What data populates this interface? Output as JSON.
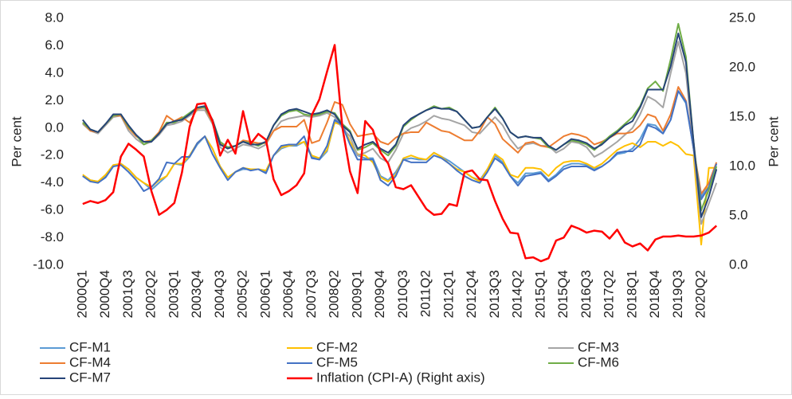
{
  "chart_data": {
    "type": "line",
    "y_label": "Per cent",
    "y2_label": "Per cent",
    "categories": [
      "2000Q1",
      null,
      null,
      "2000Q4",
      null,
      null,
      "2001Q3",
      null,
      null,
      "2002Q2",
      null,
      null,
      "2003Q1",
      null,
      null,
      "2003Q4",
      null,
      null,
      "2004Q3",
      null,
      null,
      "2005Q2",
      null,
      null,
      "2006Q1",
      null,
      null,
      "2006Q4",
      null,
      null,
      "2007Q3",
      null,
      null,
      "2008Q2",
      null,
      null,
      "2009Q1",
      null,
      null,
      "2009Q4",
      null,
      null,
      "2010Q3",
      null,
      null,
      "2011Q2",
      null,
      null,
      "2012Q1",
      null,
      null,
      "2012Q4",
      null,
      null,
      "2013Q3",
      null,
      null,
      "2014Q2",
      null,
      null,
      "2015Q1",
      null,
      null,
      "2015Q4",
      null,
      null,
      "2016Q3",
      null,
      null,
      "2017Q2",
      null,
      null,
      "2018Q1",
      null,
      null,
      "2018Q4",
      null,
      null,
      "2019Q3",
      null,
      null,
      "2020Q2",
      null,
      null
    ],
    "ylim": [
      -10,
      8
    ],
    "yticks": [
      {
        "value": -10,
        "label": "-10.0"
      },
      {
        "value": -8,
        "label": "-8.0"
      },
      {
        "value": -6,
        "label": "-6.0"
      },
      {
        "value": -4,
        "label": "-4.0"
      },
      {
        "value": -2,
        "label": "-2.0"
      },
      {
        "value": 0,
        "label": "0.0"
      },
      {
        "value": 2,
        "label": "2.0"
      },
      {
        "value": 4,
        "label": "4.0"
      },
      {
        "value": 6,
        "label": "6.0"
      },
      {
        "value": 8,
        "label": "8.0"
      }
    ],
    "y2lim": [
      0,
      25
    ],
    "y2ticks": [
      {
        "value": 0,
        "label": "0.0"
      },
      {
        "value": 5,
        "label": "5.0"
      },
      {
        "value": 10,
        "label": "10.0"
      },
      {
        "value": 15,
        "label": "15.0"
      },
      {
        "value": 20,
        "label": "20.0"
      },
      {
        "value": 25,
        "label": "25.0"
      }
    ],
    "grid": false,
    "series": [
      {
        "name": "CF-M1",
        "color": "#5b9bd5",
        "values": [
          -3.5,
          -3.8,
          -3.9,
          -3.5,
          -2.8,
          -2.6,
          -3.0,
          -3.6,
          -4.0,
          -4.5,
          -4.0,
          -3.5,
          -2.6,
          -2.7,
          -2.1,
          -1.2,
          -0.6,
          -1.5,
          -2.8,
          -3.6,
          -3.2,
          -3.0,
          -3.0,
          -3.0,
          -3.2,
          -2.0,
          -1.5,
          -1.3,
          -1.3,
          -1.0,
          -2.1,
          -2.3,
          -1.7,
          0.5,
          0.3,
          -1.0,
          -2.0,
          -2.2,
          -2.2,
          -3.5,
          -3.8,
          -3.2,
          -2.3,
          -2.2,
          -2.3,
          -2.3,
          -1.8,
          -2.1,
          -2.4,
          -2.8,
          -3.2,
          -3.6,
          -3.8,
          -3.0,
          -2.0,
          -2.5,
          -3.5,
          -4.0,
          -3.3,
          -3.3,
          -3.2,
          -3.8,
          -3.4,
          -2.8,
          -2.6,
          -2.6,
          -2.7,
          -3.0,
          -2.8,
          -2.4,
          -1.9,
          -1.8,
          -1.5,
          -0.8,
          0.3,
          0.2,
          -0.4,
          0.6,
          2.7,
          1.8,
          -1.5,
          -5.0,
          -4.0,
          -3.0
        ]
      },
      {
        "name": "CF-M2",
        "color": "#ffc000",
        "values": [
          -3.4,
          -3.8,
          -3.9,
          -3.4,
          -2.7,
          -2.6,
          -3.0,
          -3.6,
          -4.0,
          -4.3,
          -3.8,
          -3.5,
          -2.6,
          -2.6,
          -2.0,
          -1.1,
          -0.6,
          -1.5,
          -2.8,
          -3.6,
          -3.2,
          -2.9,
          -3.0,
          -3.0,
          -3.1,
          -2.0,
          -1.4,
          -1.3,
          -1.2,
          -1.0,
          -2.0,
          -2.2,
          -1.6,
          0.4,
          0.2,
          -1.0,
          -1.9,
          -2.0,
          -2.5,
          -3.6,
          -3.9,
          -3.4,
          -2.2,
          -2.0,
          -2.2,
          -2.3,
          -1.8,
          -2.1,
          -2.6,
          -3.0,
          -3.2,
          -3.6,
          -3.9,
          -3.0,
          -1.9,
          -2.3,
          -3.4,
          -3.6,
          -2.9,
          -2.9,
          -3.0,
          -3.5,
          -2.9,
          -2.5,
          -2.4,
          -2.4,
          -2.6,
          -2.9,
          -2.6,
          -2.1,
          -1.6,
          -1.3,
          -1.1,
          -1.4,
          -1.0,
          -1.0,
          -1.3,
          -1.0,
          -1.3,
          -1.9,
          -2.0,
          -8.5,
          -2.9,
          -2.9
        ]
      },
      {
        "name": "CF-M3",
        "color": "#a5a5a5",
        "values": [
          0.3,
          -0.2,
          -0.4,
          0.2,
          0.8,
          0.9,
          -0.2,
          -0.8,
          -1.2,
          -1.0,
          -0.5,
          0.2,
          0.3,
          0.5,
          0.9,
          1.3,
          1.3,
          0.3,
          -1.4,
          -1.8,
          -1.5,
          -1.2,
          -1.3,
          -1.5,
          -1.2,
          -0.2,
          0.5,
          0.7,
          0.8,
          0.9,
          0.8,
          0.9,
          1.1,
          0.8,
          0.0,
          -0.6,
          -2.0,
          -1.8,
          -1.5,
          -2.2,
          -2.5,
          -1.6,
          -0.4,
          0.0,
          0.2,
          0.5,
          0.9,
          0.7,
          0.6,
          0.4,
          0.2,
          -0.3,
          -0.4,
          0.2,
          0.8,
          0.2,
          -0.8,
          -1.5,
          -1.2,
          -1.1,
          -1.3,
          -1.3,
          -1.8,
          -1.5,
          -1.0,
          -1.1,
          -1.4,
          -2.1,
          -1.8,
          -1.4,
          -1.0,
          -0.5,
          0.0,
          1.0,
          2.3,
          2.0,
          1.5,
          4.0,
          6.3,
          4.0,
          -1.5,
          -7.0,
          -5.5,
          -4.0
        ]
      },
      {
        "name": "CF-M4",
        "color": "#ed7d31",
        "values": [
          0.4,
          -0.2,
          -0.3,
          0.3,
          0.9,
          0.9,
          0.0,
          -0.6,
          -1.0,
          -0.9,
          -0.3,
          0.9,
          0.5,
          0.8,
          0.4,
          1.4,
          1.5,
          0.4,
          -1.1,
          -1.4,
          -1.3,
          -0.9,
          -1.0,
          -1.1,
          -1.1,
          -0.2,
          0.1,
          0.1,
          0.1,
          0.6,
          -1.1,
          -0.9,
          0.4,
          1.9,
          1.7,
          0.3,
          -0.6,
          -0.5,
          -0.4,
          -1.0,
          -1.2,
          -0.7,
          -0.4,
          -0.3,
          -0.3,
          0.4,
          0.1,
          -0.2,
          -0.3,
          -0.6,
          -0.9,
          -0.9,
          -0.2,
          0.8,
          0.3,
          -0.8,
          -1.3,
          -1.8,
          -1.1,
          -1.0,
          -1.3,
          -1.4,
          -1.0,
          -0.6,
          -0.4,
          -0.5,
          -0.7,
          -1.2,
          -1.0,
          -0.7,
          -0.4,
          -0.4,
          -0.3,
          0.2,
          1.0,
          0.8,
          -0.2,
          1.0,
          3.0,
          2.0,
          -1.5,
          -4.8,
          -4.0,
          -2.5
        ]
      },
      {
        "name": "CF-M5",
        "color": "#4472c4",
        "values": [
          -3.5,
          -3.9,
          -4.0,
          -3.6,
          -2.8,
          -2.7,
          -3.2,
          -3.8,
          -4.6,
          -4.3,
          -3.7,
          -2.5,
          -2.6,
          -2.1,
          -2.1,
          -1.1,
          -0.6,
          -1.9,
          -2.9,
          -3.8,
          -3.2,
          -2.9,
          -3.1,
          -3.0,
          -3.3,
          -2.0,
          -1.3,
          -1.2,
          -1.2,
          -0.6,
          -2.2,
          -2.3,
          -1.3,
          0.6,
          0.2,
          -1.2,
          -2.3,
          -2.3,
          -2.3,
          -3.8,
          -4.2,
          -3.5,
          -2.3,
          -2.5,
          -2.5,
          -2.5,
          -2.0,
          -2.2,
          -2.6,
          -3.1,
          -3.5,
          -3.8,
          -4.0,
          -3.2,
          -2.2,
          -2.6,
          -3.5,
          -4.2,
          -3.5,
          -3.4,
          -3.3,
          -3.9,
          -3.5,
          -3.0,
          -2.8,
          -2.8,
          -2.8,
          -3.1,
          -2.8,
          -2.4,
          -1.8,
          -1.7,
          -1.7,
          -1.2,
          0.2,
          0.0,
          -0.4,
          0.6,
          2.7,
          1.9,
          -1.5,
          -5.2,
          -4.3,
          -2.6
        ]
      },
      {
        "name": "CF-M6",
        "color": "#70ad47",
        "values": [
          0.4,
          -0.1,
          -0.3,
          0.3,
          0.9,
          1.0,
          0.1,
          -0.5,
          -1.2,
          -0.9,
          -0.4,
          0.4,
          0.4,
          0.7,
          1.1,
          1.5,
          1.5,
          0.6,
          -1.0,
          -1.4,
          -1.3,
          -1.0,
          -1.1,
          -1.3,
          -1.0,
          0.2,
          0.9,
          1.2,
          1.3,
          1.0,
          0.9,
          1.0,
          1.2,
          1.1,
          0.3,
          -0.2,
          -1.6,
          -1.4,
          -1.1,
          -1.6,
          -2.0,
          -1.3,
          0.1,
          0.6,
          1.0,
          1.3,
          1.6,
          1.4,
          1.5,
          1.2,
          0.6,
          0.0,
          0.1,
          0.8,
          1.5,
          0.7,
          -0.3,
          -0.7,
          -0.6,
          -0.7,
          -0.8,
          -1.4,
          -1.6,
          -1.2,
          -0.9,
          -1.0,
          -1.2,
          -1.6,
          -1.1,
          -0.6,
          -0.2,
          0.3,
          0.8,
          1.6,
          2.9,
          3.4,
          2.7,
          5.0,
          7.6,
          5.2,
          -1.0,
          -6.0,
          -4.5,
          -2.8
        ]
      },
      {
        "name": "CF-M7",
        "color": "#264478",
        "values": [
          0.6,
          -0.1,
          -0.3,
          0.3,
          1.0,
          1.0,
          0.2,
          -0.5,
          -1.0,
          -1.0,
          -0.4,
          0.3,
          0.5,
          0.6,
          1.0,
          1.5,
          1.6,
          0.6,
          -1.2,
          -1.5,
          -1.3,
          -1.0,
          -1.2,
          -1.2,
          -1.0,
          0.2,
          1.0,
          1.3,
          1.4,
          1.2,
          1.0,
          1.1,
          1.3,
          1.0,
          0.2,
          -0.3,
          -1.5,
          -1.2,
          -1.0,
          -1.5,
          -1.8,
          -1.2,
          0.2,
          0.7,
          1.0,
          1.3,
          1.5,
          1.4,
          1.4,
          1.2,
          0.6,
          0.0,
          0.1,
          0.8,
          1.4,
          0.7,
          -0.3,
          -0.7,
          -0.6,
          -0.7,
          -0.7,
          -1.3,
          -1.6,
          -1.2,
          -0.8,
          -0.9,
          -1.1,
          -1.5,
          -1.2,
          -0.7,
          -0.3,
          0.2,
          0.5,
          1.5,
          2.8,
          2.8,
          2.8,
          4.5,
          6.9,
          4.8,
          -1.0,
          -6.5,
          -5.0,
          -3.0
        ]
      },
      {
        "name": "Inflation (CPI-A) (Right axis)",
        "color": "#ff0000",
        "axis": "y2",
        "values": [
          6.2,
          6.5,
          6.3,
          6.6,
          7.4,
          11.0,
          12.3,
          11.7,
          11.0,
          7.5,
          5.1,
          5.6,
          6.3,
          9.4,
          14.0,
          16.3,
          16.4,
          14.6,
          11.1,
          12.7,
          11.3,
          15.6,
          12.3,
          13.3,
          12.7,
          8.7,
          7.1,
          7.5,
          8.1,
          9.3,
          15.2,
          16.8,
          19.6,
          22.3,
          14.0,
          9.5,
          7.3,
          14.6,
          13.7,
          11.4,
          10.3,
          7.9,
          7.7,
          8.1,
          6.9,
          5.7,
          5.1,
          5.2,
          6.2,
          6.0,
          9.4,
          9.6,
          8.7,
          8.6,
          6.5,
          4.7,
          3.3,
          3.2,
          0.7,
          0.8,
          0.4,
          0.7,
          2.5,
          2.8,
          4.0,
          3.7,
          3.3,
          3.5,
          3.4,
          2.7,
          3.6,
          2.3,
          1.9,
          2.2,
          1.5,
          2.6,
          2.9,
          2.9,
          3.0,
          2.9,
          2.9,
          3.0,
          3.3,
          4.0
        ]
      }
    ]
  }
}
